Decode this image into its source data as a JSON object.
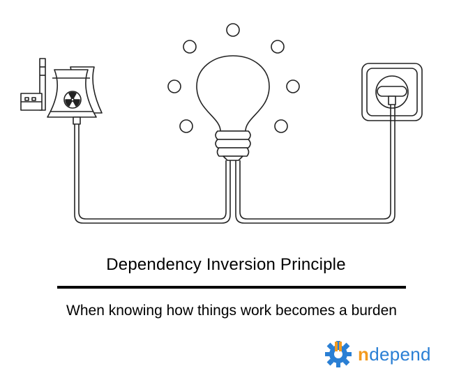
{
  "diagram": {
    "title": "Dependency Inversion Principle",
    "subtitle": "When knowing how things work becomes a burden",
    "nodes": [
      {
        "id": "power-plant",
        "icon": "nuclear-power-plant-icon"
      },
      {
        "id": "light-bulb",
        "icon": "light-bulb-icon"
      },
      {
        "id": "wall-socket",
        "icon": "wall-socket-icon"
      }
    ],
    "edges": [
      {
        "from": "power-plant",
        "to": "light-bulb"
      },
      {
        "from": "light-bulb",
        "to": "wall-socket"
      }
    ]
  },
  "brand": {
    "letter": "n",
    "rest": "depend",
    "icon": "gear-logo-icon",
    "colors": {
      "accent": "#f39a1e",
      "primary": "#2a7fd4"
    }
  }
}
